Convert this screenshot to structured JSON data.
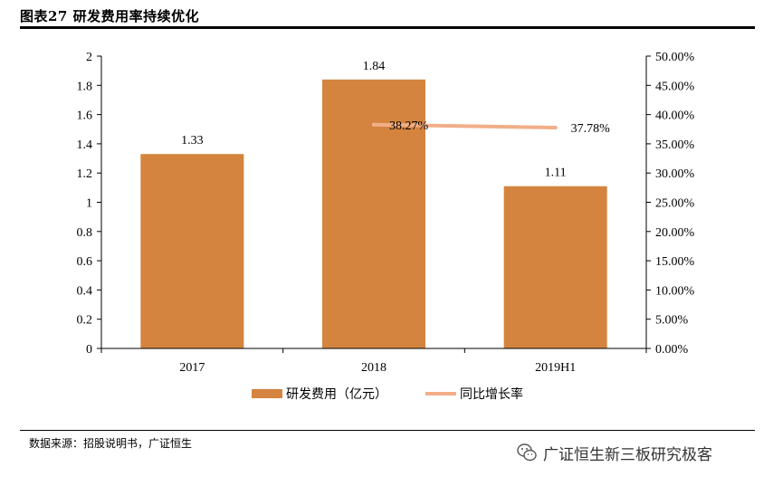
{
  "header": {
    "title": "图表27 研发费用率持续优化"
  },
  "footer": {
    "source": "数据来源：招股说明书，广证恒生",
    "watermark_text": "广证恒生新三板研究极客",
    "watermark_icon": "wechat-icon"
  },
  "colors": {
    "bar": "#D4843F",
    "line": "#F2AE87",
    "axis": "#000000"
  },
  "chart_data": {
    "type": "bar",
    "categories": [
      "2017",
      "2018",
      "2019H1"
    ],
    "series": [
      {
        "name": "研发费用（亿元）",
        "kind": "bar",
        "axis": "left",
        "values": [
          1.33,
          1.84,
          1.11
        ],
        "labels": [
          "1.33",
          "1.84",
          "1.11"
        ]
      },
      {
        "name": "同比增长率",
        "kind": "line",
        "axis": "right",
        "values": [
          null,
          0.3827,
          0.3778
        ],
        "labels": [
          "",
          "38.27%",
          "37.78%"
        ]
      }
    ],
    "ylim": [
      0,
      2
    ],
    "yticks": [
      "0",
      "0.2",
      "0.4",
      "0.6",
      "0.8",
      "1",
      "1.2",
      "1.4",
      "1.6",
      "1.8",
      "2"
    ],
    "y2lim": [
      0,
      0.5
    ],
    "y2ticks": [
      "0.00%",
      "5.00%",
      "10.00%",
      "15.00%",
      "20.00%",
      "25.00%",
      "30.00%",
      "35.00%",
      "40.00%",
      "45.00%",
      "50.00%"
    ],
    "grid": false,
    "legend": "bottom"
  }
}
